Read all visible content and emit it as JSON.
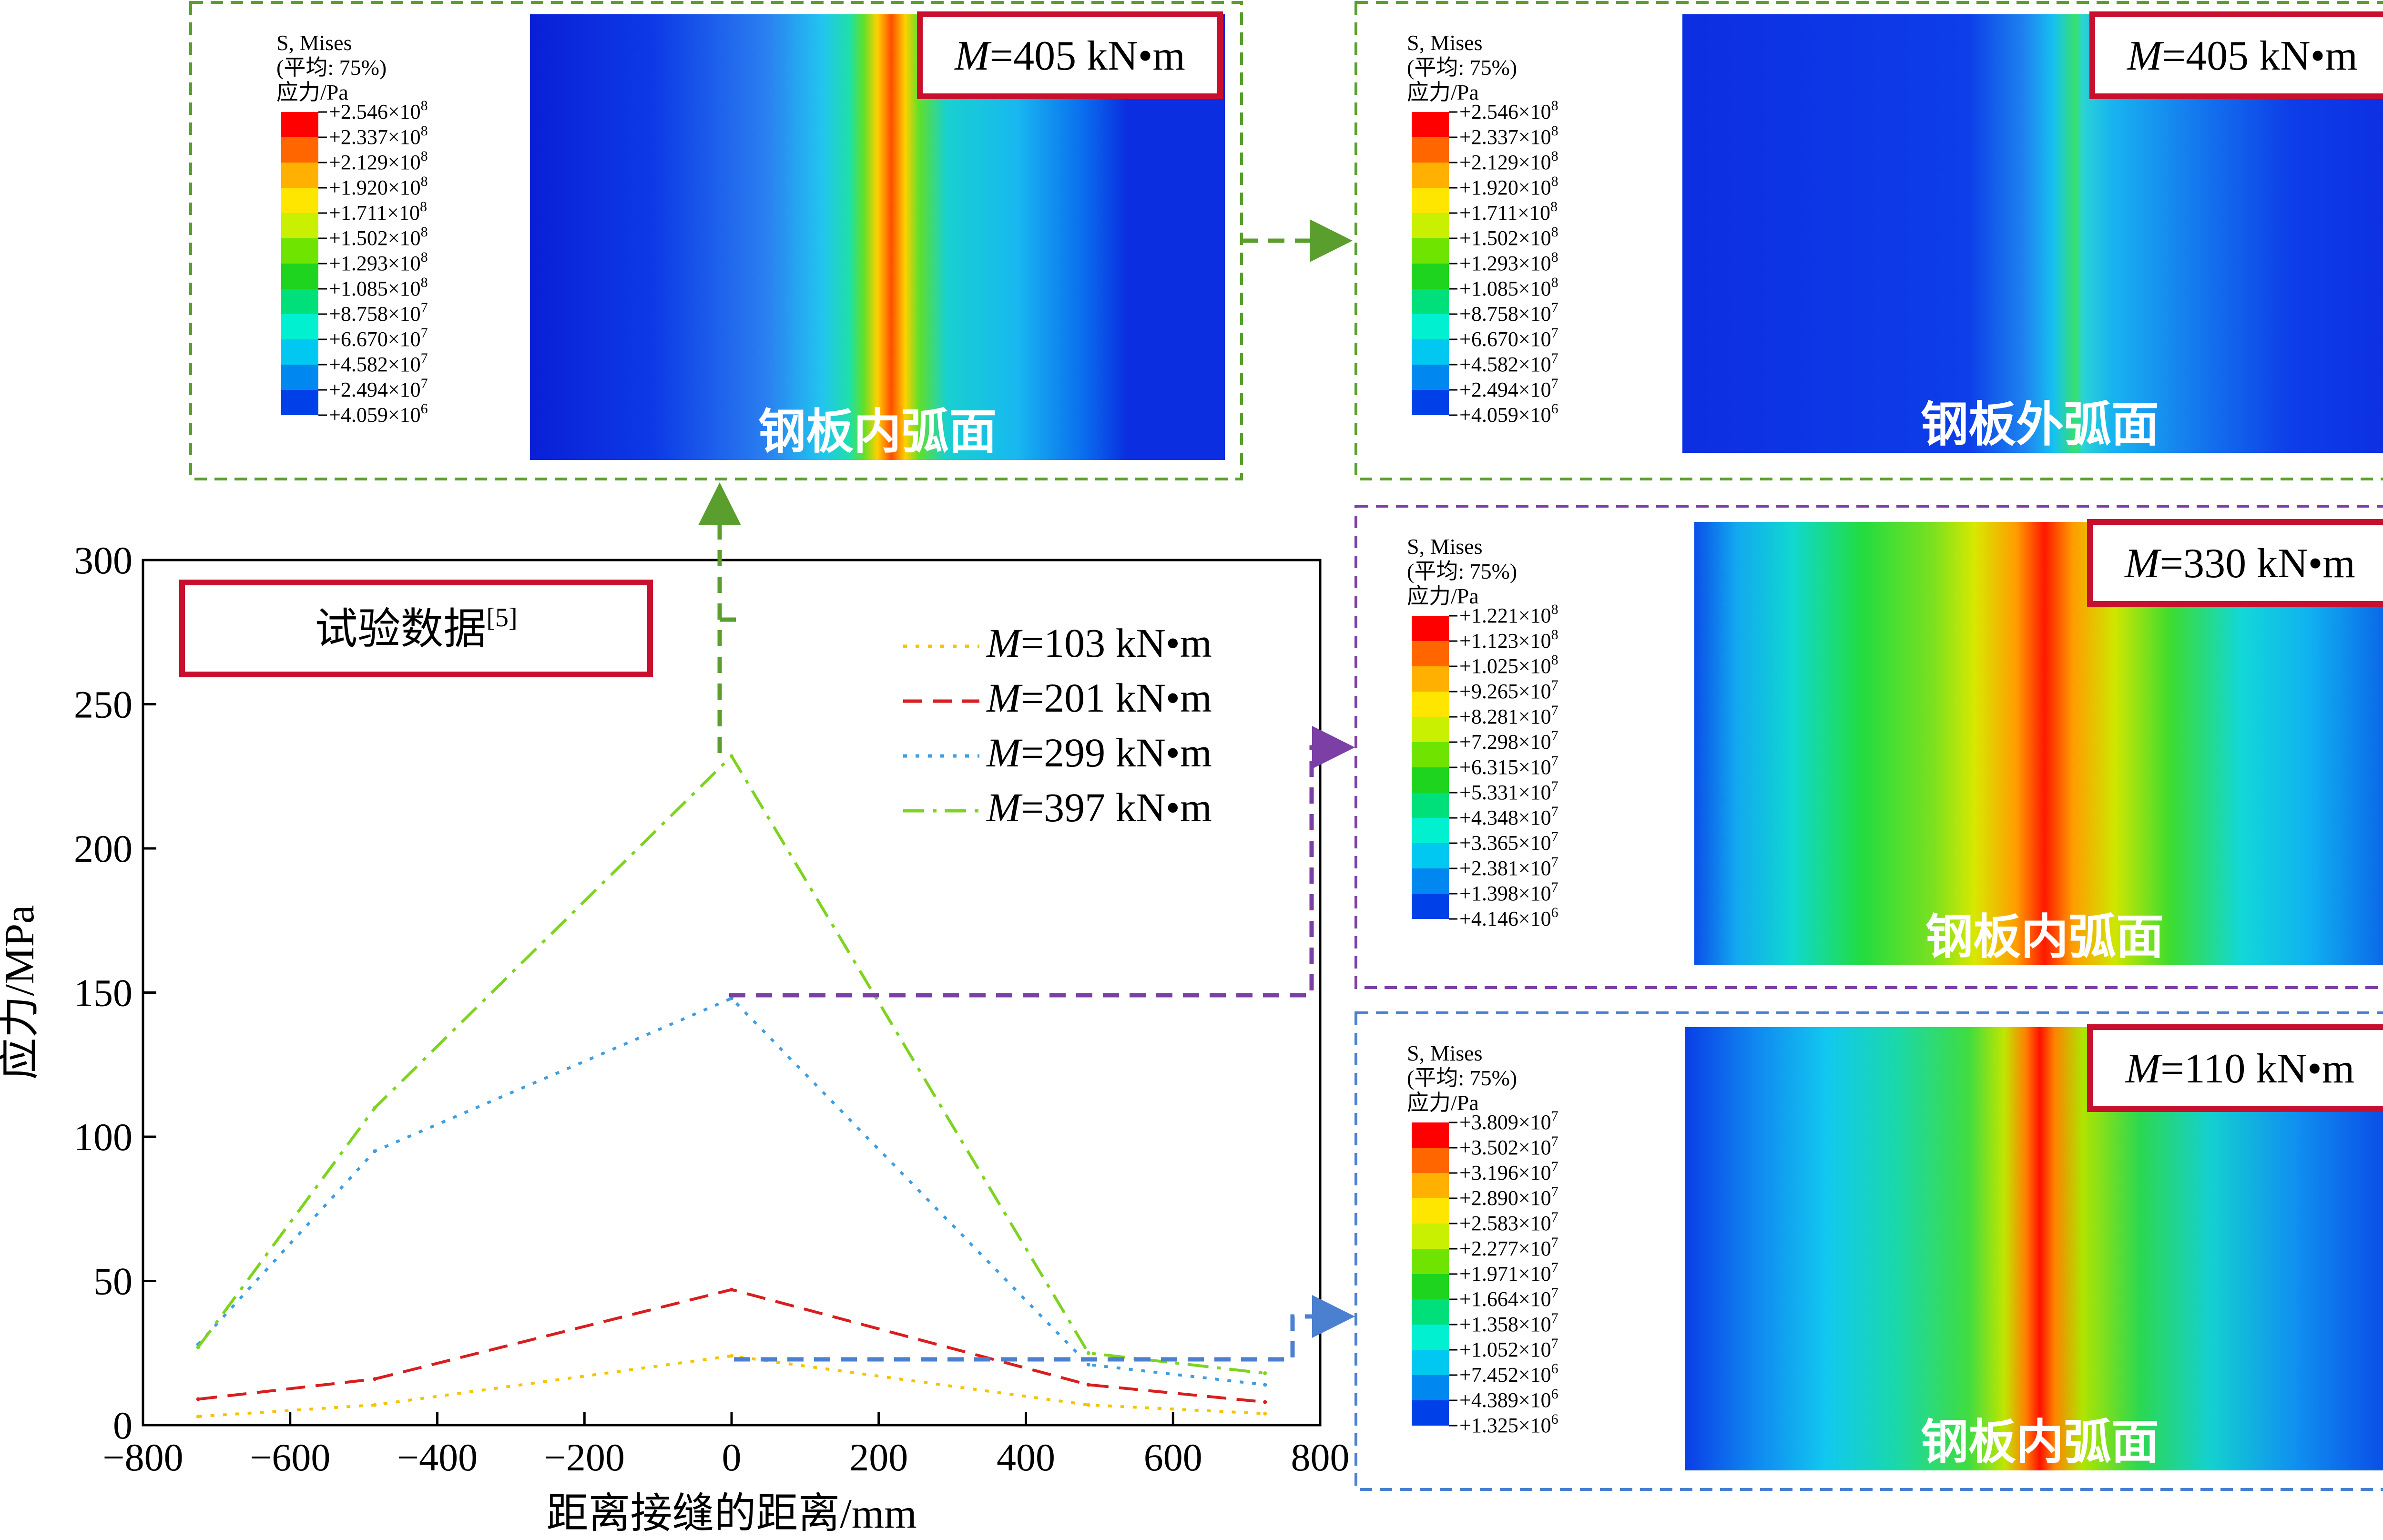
{
  "chart_data": {
    "type": "line",
    "x": [
      -725,
      -485,
      0,
      485,
      725
    ],
    "xlabel": "距离接缝的距离/mm",
    "ylabel": "应力/MPa",
    "xlim": [
      -800,
      800
    ],
    "ylim": [
      0,
      300
    ],
    "xticks": [
      "−800",
      "−600",
      "−400",
      "−200",
      "0",
      "200",
      "400",
      "600",
      "800"
    ],
    "yticks": [
      "0",
      "50",
      "100",
      "150",
      "200",
      "250",
      "300"
    ],
    "grid": false,
    "legend_position": "top-right",
    "annotation": {
      "text": "试验数据",
      "ref": "[5]"
    },
    "series": [
      {
        "name": "M=103 kN·m",
        "M_prefix": "M",
        "M_rest": "=103 kN•m",
        "style": "dotted",
        "color": "#f5c400",
        "values": [
          3,
          7,
          24,
          7,
          4
        ]
      },
      {
        "name": "M=201 kN·m",
        "M_prefix": "M",
        "M_rest": "=201 kN•m",
        "style": "dashed",
        "color": "#d81e1e",
        "values": [
          9,
          16,
          47,
          14,
          8
        ]
      },
      {
        "name": "M=299 kN·m",
        "M_prefix": "M",
        "M_rest": "=299 kN•m",
        "style": "dotted",
        "color": "#3f9ee0",
        "values": [
          28,
          95,
          148,
          21,
          14
        ]
      },
      {
        "name": "M=397 kN·m",
        "M_prefix": "M",
        "M_rest": "=397 kN•m",
        "style": "dashdot",
        "color": "#7ed321",
        "values": [
          27,
          110,
          232,
          25,
          18
        ]
      }
    ]
  },
  "panels": [
    {
      "id": "p1",
      "moment_prefix": "M",
      "moment_rest": "=405 kN•m",
      "surface": "钢板内弧面",
      "legend": {
        "line1": "S, Mises",
        "line2": "(平均: 75%)",
        "line3": "应力/Pa",
        "values": [
          "+2.546×10",
          "+2.337×10",
          "+2.129×10",
          "+1.920×10",
          "+1.711×10",
          "+1.502×10",
          "+1.293×10",
          "+1.085×10",
          "+8.758×10",
          "+6.670×10",
          "+4.582×10",
          "+2.494×10",
          "+4.059×10"
        ],
        "exps": [
          "8",
          "8",
          "8",
          "8",
          "8",
          "8",
          "8",
          "8",
          "7",
          "7",
          "7",
          "7",
          "6"
        ]
      },
      "border_color": "#5a9e2e"
    },
    {
      "id": "p2",
      "moment_prefix": "M",
      "moment_rest": "=405 kN•m",
      "surface": "钢板外弧面",
      "legend": {
        "line1": "S, Mises",
        "line2": "(平均: 75%)",
        "line3": "应力/Pa",
        "values": [
          "+2.546×10",
          "+2.337×10",
          "+2.129×10",
          "+1.920×10",
          "+1.711×10",
          "+1.502×10",
          "+1.293×10",
          "+1.085×10",
          "+8.758×10",
          "+6.670×10",
          "+4.582×10",
          "+2.494×10",
          "+4.059×10"
        ],
        "exps": [
          "8",
          "8",
          "8",
          "8",
          "8",
          "8",
          "8",
          "8",
          "7",
          "7",
          "7",
          "7",
          "6"
        ]
      },
      "border_color": "#5a9e2e"
    },
    {
      "id": "p3",
      "moment_prefix": "M",
      "moment_rest": "=330 kN•m",
      "surface": "钢板内弧面",
      "legend": {
        "line1": "S, Mises",
        "line2": "(平均: 75%)",
        "line3": "应力/Pa",
        "values": [
          "+1.221×10",
          "+1.123×10",
          "+1.025×10",
          "+9.265×10",
          "+8.281×10",
          "+7.298×10",
          "+6.315×10",
          "+5.331×10",
          "+4.348×10",
          "+3.365×10",
          "+2.381×10",
          "+1.398×10",
          "+4.146×10"
        ],
        "exps": [
          "8",
          "8",
          "8",
          "7",
          "7",
          "7",
          "7",
          "7",
          "7",
          "7",
          "7",
          "7",
          "6"
        ]
      },
      "border_color": "#7b3fa6"
    },
    {
      "id": "p4",
      "moment_prefix": "M",
      "moment_rest": "=110 kN•m",
      "surface": "钢板内弧面",
      "legend": {
        "line1": "S, Mises",
        "line2": "(平均: 75%)",
        "line3": "应力/Pa",
        "values": [
          "+3.809×10",
          "+3.502×10",
          "+3.196×10",
          "+2.890×10",
          "+2.583×10",
          "+2.277×10",
          "+1.971×10",
          "+1.664×10",
          "+1.358×10",
          "+1.052×10",
          "+7.452×10",
          "+4.389×10",
          "+1.325×10"
        ],
        "exps": [
          "7",
          "7",
          "7",
          "7",
          "7",
          "7",
          "7",
          "7",
          "7",
          "7",
          "6",
          "6",
          "6"
        ]
      },
      "border_color": "#4b7fd0"
    }
  ],
  "colors": {
    "contour_scale": [
      "#ff0000",
      "#ff6600",
      "#ffb000",
      "#ffe600",
      "#c8f000",
      "#6ee400",
      "#1ed41e",
      "#00e07a",
      "#00f0d0",
      "#00c8f0",
      "#0088f0",
      "#0040e8",
      "#0010d8"
    ],
    "callout_border": "#c8102e",
    "green_arrow": "#5a9e2e",
    "purple_arrow": "#7b3fa6",
    "blue_arrow": "#4b7fd0"
  }
}
